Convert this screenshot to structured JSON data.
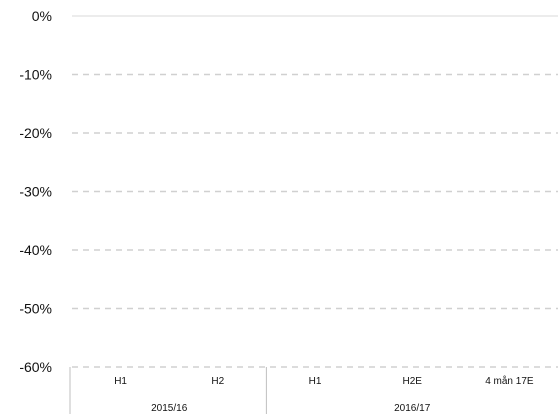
{
  "chart_data": {
    "type": "bar",
    "title": "",
    "xlabel": "",
    "ylabel": "",
    "ylim": [
      -60,
      0
    ],
    "y_ticks": [
      0,
      -10,
      -20,
      -30,
      -40,
      -50,
      -60
    ],
    "y_tick_labels": [
      "0%",
      "-10%",
      "-20%",
      "-30%",
      "-40%",
      "-50%",
      "-60%"
    ],
    "categories": [
      "H1",
      "H2",
      "H1",
      "H2E",
      "4 mån 17E"
    ],
    "groups": [
      {
        "label": "2015/16",
        "categories": [
          "H1",
          "H2"
        ]
      },
      {
        "label": "2016/17",
        "categories": [
          "H1",
          "H2E",
          "4 mån 17E"
        ]
      }
    ],
    "series": [
      {
        "values": [
          null,
          null,
          null,
          null,
          null
        ]
      }
    ],
    "grid": true,
    "legend": "none",
    "colors": {
      "gridline": "#d0d0d0",
      "zeroline": "#d9d9d9",
      "axis": "#bfbfbf",
      "text": "#111111"
    }
  }
}
